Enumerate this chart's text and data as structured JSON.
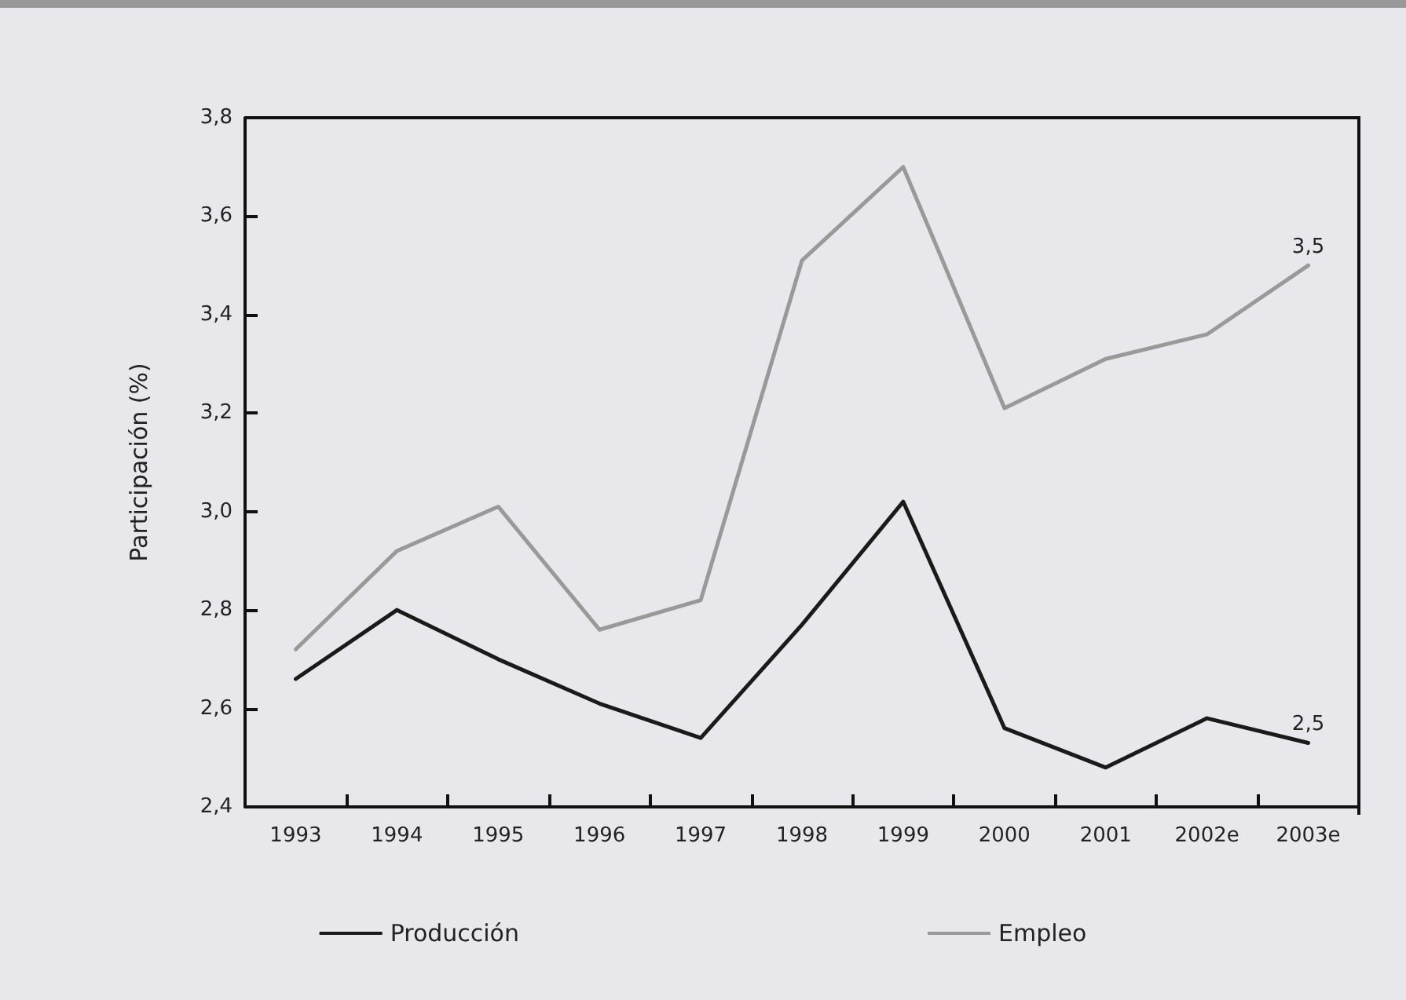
{
  "chart_data": {
    "type": "line",
    "ylabel": "Participación (%)",
    "categories": [
      "1993",
      "1994",
      "1995",
      "1996",
      "1997",
      "1998",
      "1999",
      "2000",
      "2001",
      "2002e",
      "2003e"
    ],
    "series": [
      {
        "name": "Producción",
        "color": "#1a1a1a",
        "values": [
          2.66,
          2.8,
          2.7,
          2.61,
          2.54,
          2.77,
          3.02,
          2.56,
          2.48,
          2.58,
          2.53
        ],
        "value_labels": [
          null,
          null,
          null,
          null,
          null,
          null,
          null,
          null,
          null,
          null,
          "2,5"
        ]
      },
      {
        "name": "Empleo",
        "color": "#999999",
        "values": [
          2.72,
          2.92,
          3.01,
          2.76,
          2.82,
          3.51,
          3.7,
          3.21,
          3.31,
          3.36,
          3.5
        ],
        "value_labels": [
          null,
          null,
          null,
          null,
          null,
          null,
          null,
          null,
          null,
          null,
          "3,5"
        ]
      }
    ],
    "ylim": [
      2.4,
      3.8
    ],
    "yticks": [
      {
        "value": 2.4,
        "label": "2,4"
      },
      {
        "value": 2.6,
        "label": "2,6"
      },
      {
        "value": 2.8,
        "label": "2,8"
      },
      {
        "value": 3.0,
        "label": "3,0"
      },
      {
        "value": 3.2,
        "label": "3,2"
      },
      {
        "value": 3.4,
        "label": "3,4"
      },
      {
        "value": 3.6,
        "label": "3,6"
      },
      {
        "value": 3.8,
        "label": "3,8"
      }
    ],
    "grid": false,
    "legend": "bottom",
    "marker": "none",
    "line_style": "solid"
  }
}
